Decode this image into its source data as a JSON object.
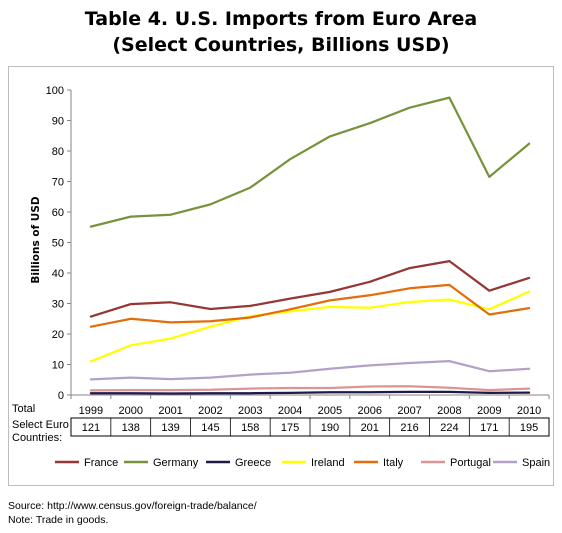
{
  "title": {
    "line1": "Table 4. U.S. Imports from Euro Area",
    "line2": "(Select Countries, Billions USD)"
  },
  "chart_data": {
    "type": "line",
    "ylabel": "Billions of USD",
    "ylim": [
      0,
      100
    ],
    "yticks": [
      0,
      10,
      20,
      30,
      40,
      50,
      60,
      70,
      80,
      90,
      100
    ],
    "grid": false,
    "legend_position": "bottom",
    "categories": [
      "1999",
      "2000",
      "2001",
      "2002",
      "2003",
      "2004",
      "2005",
      "2006",
      "2007",
      "2008",
      "2009",
      "2010"
    ],
    "series": [
      {
        "name": "France",
        "color": "#953735",
        "values": [
          25.7,
          29.8,
          30.4,
          28.2,
          29.2,
          31.6,
          33.8,
          37.1,
          41.6,
          43.9,
          34.2,
          38.4
        ]
      },
      {
        "name": "Germany",
        "color": "#77933c",
        "values": [
          55.2,
          58.5,
          59.1,
          62.5,
          68.0,
          77.3,
          84.8,
          89.1,
          94.2,
          97.5,
          71.5,
          82.4
        ]
      },
      {
        "name": "Greece",
        "color": "#1f1a4a",
        "values": [
          0.6,
          0.6,
          0.5,
          0.6,
          0.6,
          0.7,
          0.9,
          0.9,
          1.0,
          1.0,
          0.7,
          0.8
        ]
      },
      {
        "name": "Ireland",
        "color": "#ffff00",
        "values": [
          11.0,
          16.3,
          18.5,
          22.4,
          25.8,
          27.4,
          28.9,
          28.6,
          30.5,
          31.3,
          28.1,
          33.9
        ]
      },
      {
        "name": "Italy",
        "color": "#e46c0a",
        "values": [
          22.4,
          25.0,
          23.8,
          24.2,
          25.4,
          28.1,
          31.0,
          32.7,
          35.0,
          36.1,
          26.4,
          28.5
        ]
      },
      {
        "name": "Portugal",
        "color": "#d99694",
        "values": [
          1.5,
          1.6,
          1.6,
          1.7,
          2.1,
          2.3,
          2.3,
          2.8,
          2.9,
          2.4,
          1.6,
          2.1
        ]
      },
      {
        "name": "Spain",
        "color": "#b3a2c7",
        "values": [
          5.1,
          5.7,
          5.2,
          5.7,
          6.7,
          7.3,
          8.6,
          9.7,
          10.5,
          11.1,
          7.8,
          8.6
        ]
      }
    ],
    "table_row": {
      "label_line1": "Total",
      "label_line2": "Select Euro",
      "label_line3": "Countries:",
      "values": [
        "121",
        "138",
        "139",
        "145",
        "158",
        "175",
        "190",
        "201",
        "216",
        "224",
        "171",
        "195"
      ]
    }
  },
  "source": {
    "line1": "Source: http://www.census.gov/foreign-trade/balance/",
    "line2": "Note: Trade in goods."
  }
}
